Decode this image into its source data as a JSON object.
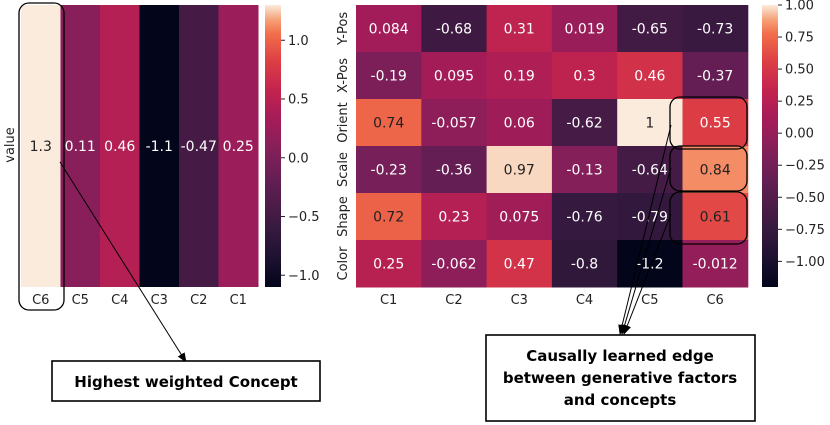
{
  "chart_data": [
    {
      "type": "heatmap",
      "name": "concept-weights",
      "ylabel": "value",
      "categories": [
        "C6",
        "C5",
        "C4",
        "C3",
        "C2",
        "C1"
      ],
      "values": [
        1.3,
        0.11,
        0.46,
        -1.1,
        -0.47,
        0.25
      ],
      "value_labels": [
        "1.3",
        "0.11",
        "0.46",
        "-1.1",
        "-0.47",
        "0.25"
      ],
      "colorbar": {
        "range": [
          -1.1,
          1.3
        ],
        "ticks": [
          1.0,
          0.5,
          0.0,
          -0.5,
          -1.0
        ],
        "tick_labels": [
          "1.0",
          "0.5",
          "0.0",
          "−0.5",
          "−1.0"
        ]
      },
      "highlight": "C6"
    },
    {
      "type": "heatmap",
      "name": "factor-concept-edges",
      "rows": [
        "Y-Pos",
        "X-Pos",
        "Orient",
        "Scale",
        "Shape",
        "Color"
      ],
      "columns": [
        "C1",
        "C2",
        "C3",
        "C4",
        "C5",
        "C6"
      ],
      "values": [
        [
          0.084,
          -0.68,
          0.31,
          0.019,
          -0.65,
          -0.73
        ],
        [
          -0.19,
          0.095,
          0.19,
          0.3,
          0.46,
          -0.37
        ],
        [
          0.74,
          -0.057,
          0.06,
          -0.62,
          1.0,
          0.55
        ],
        [
          -0.23,
          -0.36,
          0.97,
          -0.13,
          -0.64,
          0.84
        ],
        [
          0.72,
          0.23,
          0.075,
          -0.76,
          -0.79,
          0.61
        ],
        [
          0.25,
          -0.062,
          0.47,
          -0.8,
          -1.2,
          -0.012
        ]
      ],
      "value_labels": [
        [
          "0.084",
          "-0.68",
          "0.31",
          "0.019",
          "-0.65",
          "-0.73"
        ],
        [
          "-0.19",
          "0.095",
          "0.19",
          "0.3",
          "0.46",
          "-0.37"
        ],
        [
          "0.74",
          "-0.057",
          "0.06",
          "-0.62",
          "1",
          "0.55"
        ],
        [
          "-0.23",
          "-0.36",
          "0.97",
          "-0.13",
          "-0.64",
          "0.84"
        ],
        [
          "0.72",
          "0.23",
          "0.075",
          "-0.76",
          "-0.79",
          "0.61"
        ],
        [
          "0.25",
          "-0.062",
          "0.47",
          "-0.8",
          "-1.2",
          "-0.012"
        ]
      ],
      "colorbar": {
        "range": [
          -1.2,
          1.0
        ],
        "ticks": [
          1.0,
          0.75,
          0.5,
          0.25,
          0.0,
          -0.25,
          -0.5,
          -0.75,
          -1.0
        ],
        "tick_labels": [
          "1.00",
          "0.75",
          "0.50",
          "0.25",
          "0.00",
          "−0.25",
          "−0.50",
          "−0.75",
          "−1.00"
        ]
      },
      "highlighted_cells": [
        [
          "Orient",
          "C6"
        ],
        [
          "Scale",
          "C6"
        ],
        [
          "Shape",
          "C6"
        ]
      ]
    }
  ],
  "annotations": {
    "left": "Highest weighted Concept",
    "right_line1": "Causally learned edge",
    "right_line2": "between generative factors",
    "right_line3": "and concepts"
  }
}
